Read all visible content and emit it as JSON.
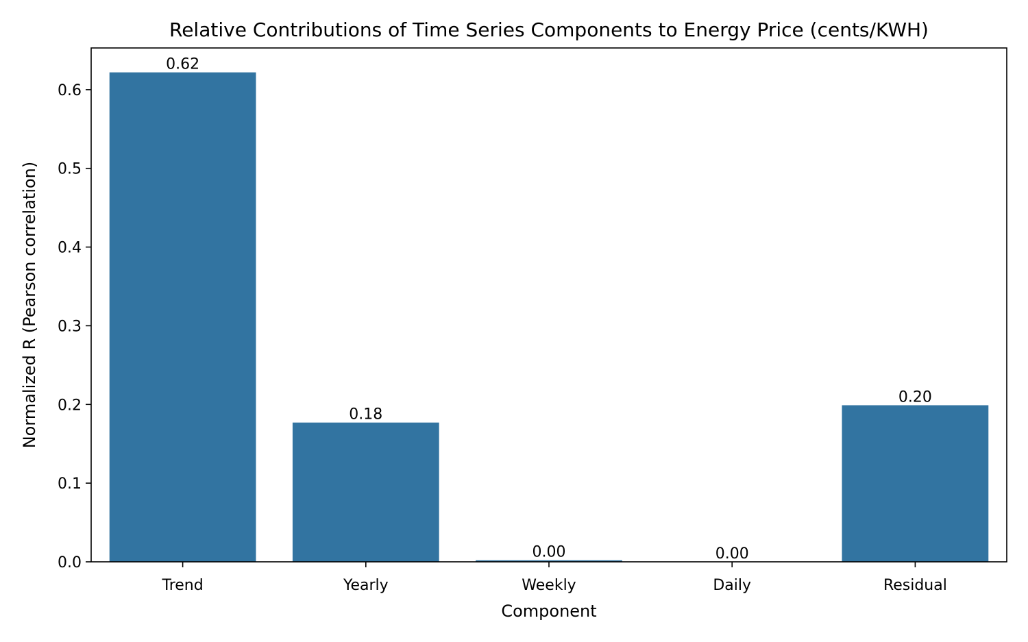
{
  "chart_data": {
    "type": "bar",
    "title": "Relative Contributions of Time Series Components to Energy Price (cents/KWH)",
    "xlabel": "Component",
    "ylabel": "Normalized R (Pearson correlation)",
    "categories": [
      "Trend",
      "Yearly",
      "Weekly",
      "Daily",
      "Residual"
    ],
    "values": [
      0.622,
      0.177,
      0.002,
      0.0,
      0.199
    ],
    "data_labels": [
      "0.62",
      "0.18",
      "0.00",
      "0.00",
      "0.20"
    ],
    "ylim": [
      0,
      0.653
    ],
    "yticks": [
      0.0,
      0.1,
      0.2,
      0.3,
      0.4,
      0.5,
      0.6
    ],
    "ytick_labels": [
      "0.0",
      "0.1",
      "0.2",
      "0.3",
      "0.4",
      "0.5",
      "0.6"
    ],
    "grid": false,
    "legend": "none",
    "bar_color": "#3274a1"
  }
}
